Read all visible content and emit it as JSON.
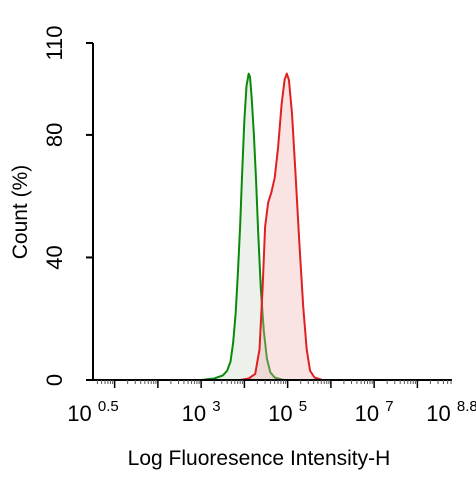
{
  "chart_data": {
    "type": "area",
    "title": "",
    "xlabel": "Log Fluoresence Intensity-H",
    "ylabel": "Count  (%)",
    "x_scale": "log10",
    "xlim_log10": [
      0.5,
      8.8
    ],
    "ylim": [
      0,
      110
    ],
    "x_ticks": [
      {
        "base": "10",
        "exp": "0.5",
        "log10": 0.5
      },
      {
        "base": "10",
        "exp": "3",
        "log10": 3
      },
      {
        "base": "10",
        "exp": "5",
        "log10": 5
      },
      {
        "base": "10",
        "exp": "7",
        "log10": 7
      },
      {
        "base": "10",
        "exp": "8.8",
        "log10": 8.8
      }
    ],
    "y_ticks": [
      {
        "label": "0",
        "value": 0
      },
      {
        "label": "40",
        "value": 40
      },
      {
        "label": "80",
        "value": 80
      },
      {
        "label": "110",
        "value": 110
      }
    ],
    "grid": false,
    "legend": "none",
    "series": [
      {
        "color": "#0a8a0a",
        "fill": "rgba(200,215,200,0.35)",
        "points": [
          [
            3.0,
            0
          ],
          [
            3.3,
            0.5
          ],
          [
            3.5,
            1.5
          ],
          [
            3.6,
            3
          ],
          [
            3.68,
            6
          ],
          [
            3.74,
            12
          ],
          [
            3.8,
            22
          ],
          [
            3.85,
            35
          ],
          [
            3.9,
            50
          ],
          [
            3.95,
            68
          ],
          [
            4.0,
            85
          ],
          [
            4.05,
            96
          ],
          [
            4.1,
            100
          ],
          [
            4.13,
            99
          ],
          [
            4.17,
            92
          ],
          [
            4.22,
            80
          ],
          [
            4.27,
            65
          ],
          [
            4.32,
            48
          ],
          [
            4.38,
            30
          ],
          [
            4.45,
            16
          ],
          [
            4.52,
            7
          ],
          [
            4.6,
            2.5
          ],
          [
            4.7,
            0.8
          ],
          [
            4.9,
            0
          ]
        ]
      },
      {
        "color": "#e02020",
        "fill": "rgba(240,175,175,0.35)",
        "points": [
          [
            3.9,
            0
          ],
          [
            4.1,
            0.5
          ],
          [
            4.25,
            2
          ],
          [
            4.35,
            10
          ],
          [
            4.42,
            30
          ],
          [
            4.48,
            50
          ],
          [
            4.55,
            58
          ],
          [
            4.62,
            61
          ],
          [
            4.7,
            66
          ],
          [
            4.78,
            76
          ],
          [
            4.86,
            90
          ],
          [
            4.93,
            98
          ],
          [
            4.98,
            100
          ],
          [
            5.03,
            98
          ],
          [
            5.1,
            87
          ],
          [
            5.18,
            68
          ],
          [
            5.27,
            45
          ],
          [
            5.36,
            24
          ],
          [
            5.44,
            10
          ],
          [
            5.52,
            3
          ],
          [
            5.62,
            0.8
          ],
          [
            5.8,
            0
          ]
        ]
      }
    ]
  }
}
